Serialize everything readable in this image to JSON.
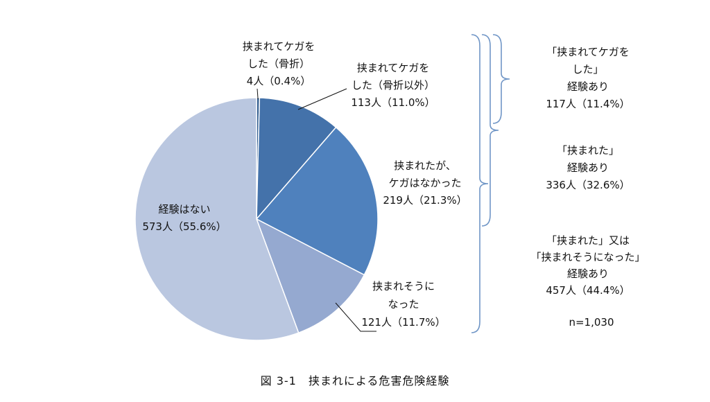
{
  "chart_data": {
    "type": "pie",
    "caption": "図 3-1　挟まれによる危害危険経験",
    "n_label": "n=1,030",
    "colors": {
      "fracture": "#2f5b8e",
      "injury_other": "#4472aa",
      "caught_no_injury": "#4f81bd",
      "near_miss": "#95a9d0",
      "none": "#bac7e0",
      "bracket": "#6f95c6"
    },
    "slices": [
      {
        "key": "fracture",
        "lines": [
          "挟まれてケガを",
          "した（骨折）",
          "4人（0.4%）"
        ],
        "count": 4,
        "percent": 0.4
      },
      {
        "key": "injury_other",
        "lines": [
          "挟まれてケガを",
          "した（骨折以外）",
          "113人（11.0%）"
        ],
        "count": 113,
        "percent": 11.0
      },
      {
        "key": "caught_no_injury",
        "lines": [
          "挟まれたが、",
          "ケガはなかった",
          "219人（21.3%）"
        ],
        "count": 219,
        "percent": 21.3
      },
      {
        "key": "near_miss",
        "lines": [
          "挟まれそうに",
          "なった",
          "121人（11.7%）"
        ],
        "count": 121,
        "percent": 11.7
      },
      {
        "key": "none",
        "lines": [
          "経験はない",
          "573人（55.6%）"
        ],
        "count": 573,
        "percent": 55.6
      }
    ],
    "groups": [
      {
        "lines": [
          "「挟まれてケガを",
          "した」",
          "経験あり",
          "117人（11.4%）"
        ]
      },
      {
        "lines": [
          "「挟まれた」",
          "経験あり",
          "336人（32.6%）"
        ]
      },
      {
        "lines": [
          "「挟まれた」又は",
          "「挟まれそうになった」",
          "経験あり",
          "457人（44.4%）"
        ]
      }
    ]
  }
}
